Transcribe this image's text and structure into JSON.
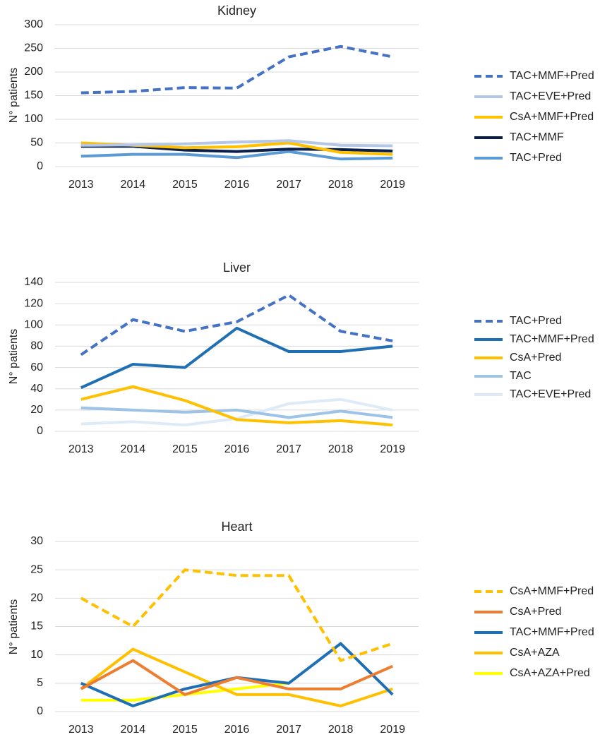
{
  "chart_data": [
    {
      "type": "line",
      "title": "Kidney",
      "xlabel": "",
      "ylabel": "N° patients",
      "categories": [
        "2013",
        "2014",
        "2015",
        "2016",
        "2017",
        "2018",
        "2019"
      ],
      "ylim": [
        0,
        300
      ],
      "yticks": [
        "0",
        "50",
        "100",
        "150",
        "200",
        "250",
        "300"
      ],
      "grid": true,
      "legend": "right",
      "series": [
        {
          "name": "TAC+MMF+Pred",
          "color": "#4472C4",
          "dashed": true,
          "values": [
            156,
            159,
            167,
            166,
            232,
            254,
            232
          ]
        },
        {
          "name": "TAC+EVE+Pred",
          "color": "#B4C7E7",
          "dashed": false,
          "values": [
            45,
            46,
            48,
            52,
            55,
            45,
            44
          ]
        },
        {
          "name": "CsA+MMF+Pred",
          "color": "#FFC000",
          "dashed": false,
          "values": [
            50,
            45,
            40,
            42,
            50,
            30,
            26
          ]
        },
        {
          "name": "TAC+MMF",
          "color": "#0B1F4B",
          "dashed": false,
          "values": [
            43,
            43,
            35,
            32,
            37,
            36,
            33
          ]
        },
        {
          "name": "TAC+Pred",
          "color": "#5B9BD5",
          "dashed": false,
          "values": [
            22,
            26,
            26,
            19,
            32,
            16,
            18
          ]
        }
      ]
    },
    {
      "type": "line",
      "title": "Liver",
      "xlabel": "",
      "ylabel": "N° patients",
      "categories": [
        "2013",
        "2014",
        "2015",
        "2016",
        "2017",
        "2018",
        "2019"
      ],
      "ylim": [
        0,
        140
      ],
      "yticks": [
        "0",
        "20",
        "40",
        "60",
        "80",
        "100",
        "120",
        "140"
      ],
      "grid": true,
      "legend": "right",
      "series": [
        {
          "name": "TAC+Pred",
          "color": "#4472C4",
          "dashed": true,
          "values": [
            72,
            105,
            94,
            103,
            128,
            94,
            85
          ]
        },
        {
          "name": "TAC+MMF+Pred",
          "color": "#1F6FB5",
          "dashed": false,
          "values": [
            41,
            63,
            60,
            97,
            75,
            75,
            80
          ]
        },
        {
          "name": "CsA+Pred",
          "color": "#FFC000",
          "dashed": false,
          "values": [
            30,
            42,
            29,
            11,
            8,
            10,
            6
          ]
        },
        {
          "name": "TAC",
          "color": "#9DC3E6",
          "dashed": false,
          "values": [
            22,
            20,
            18,
            20,
            13,
            19,
            13
          ]
        },
        {
          "name": "TAC+EVE+Pred",
          "color": "#DEEBF7",
          "dashed": false,
          "values": [
            7,
            9,
            6,
            12,
            26,
            30,
            20
          ]
        }
      ]
    },
    {
      "type": "line",
      "title": "Heart",
      "xlabel": "",
      "ylabel": "N° patients",
      "categories": [
        "2013",
        "2014",
        "2015",
        "2016",
        "2017",
        "2018",
        "2019"
      ],
      "ylim": [
        0,
        30
      ],
      "yticks": [
        "0",
        "5",
        "10",
        "15",
        "20",
        "25",
        "30"
      ],
      "grid": true,
      "legend": "right",
      "series": [
        {
          "name": "CsA+MMF+Pred",
          "color": "#FFC000",
          "dashed": true,
          "values": [
            20,
            15,
            25,
            24,
            24,
            9,
            12
          ]
        },
        {
          "name": "CsA+Pred",
          "color": "#ED7D31",
          "dashed": false,
          "values": [
            4,
            9,
            3,
            6,
            4,
            4,
            8
          ]
        },
        {
          "name": "TAC+MMF+Pred",
          "color": "#1F6FB5",
          "dashed": false,
          "values": [
            5,
            1,
            4,
            6,
            5,
            12,
            3
          ]
        },
        {
          "name": "CsA+AZA",
          "color": "#FFC000",
          "dashed": false,
          "values": [
            4,
            11,
            7,
            3,
            3,
            1,
            4
          ]
        },
        {
          "name": "CsA+AZA+Pred",
          "color": "#FFFF00",
          "dashed": false,
          "values": [
            2,
            2,
            3,
            4,
            5,
            null,
            null
          ]
        }
      ]
    }
  ]
}
